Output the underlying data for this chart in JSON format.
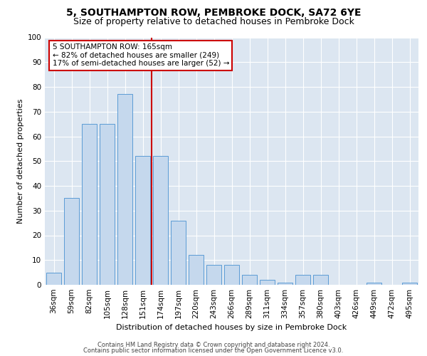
{
  "title1": "5, SOUTHAMPTON ROW, PEMBROKE DOCK, SA72 6YE",
  "title2": "Size of property relative to detached houses in Pembroke Dock",
  "xlabel": "Distribution of detached houses by size in Pembroke Dock",
  "ylabel": "Number of detached properties",
  "categories": [
    "36sqm",
    "59sqm",
    "82sqm",
    "105sqm",
    "128sqm",
    "151sqm",
    "174sqm",
    "197sqm",
    "220sqm",
    "243sqm",
    "266sqm",
    "289sqm",
    "311sqm",
    "334sqm",
    "357sqm",
    "380sqm",
    "403sqm",
    "426sqm",
    "449sqm",
    "472sqm",
    "495sqm"
  ],
  "values": [
    5,
    35,
    65,
    65,
    77,
    52,
    52,
    26,
    12,
    8,
    8,
    4,
    2,
    1,
    4,
    4,
    0,
    0,
    1,
    0,
    1
  ],
  "bar_color": "#c5d8ed",
  "bar_edge_color": "#5b9bd5",
  "ref_line_color": "#cc0000",
  "annotation_text": "5 SOUTHAMPTON ROW: 165sqm\n← 82% of detached houses are smaller (249)\n17% of semi-detached houses are larger (52) →",
  "annotation_box_color": "#ffffff",
  "annotation_box_edge": "#cc0000",
  "plot_bg_color": "#dce6f1",
  "footer1": "Contains HM Land Registry data © Crown copyright and database right 2024.",
  "footer2": "Contains public sector information licensed under the Open Government Licence v3.0.",
  "ylim": [
    0,
    100
  ],
  "yticks": [
    0,
    10,
    20,
    30,
    40,
    50,
    60,
    70,
    80,
    90,
    100
  ],
  "title1_fontsize": 10,
  "title2_fontsize": 9,
  "tick_fontsize": 7.5,
  "ylabel_fontsize": 8,
  "xlabel_fontsize": 8,
  "footer_fontsize": 6,
  "annot_fontsize": 7.5
}
